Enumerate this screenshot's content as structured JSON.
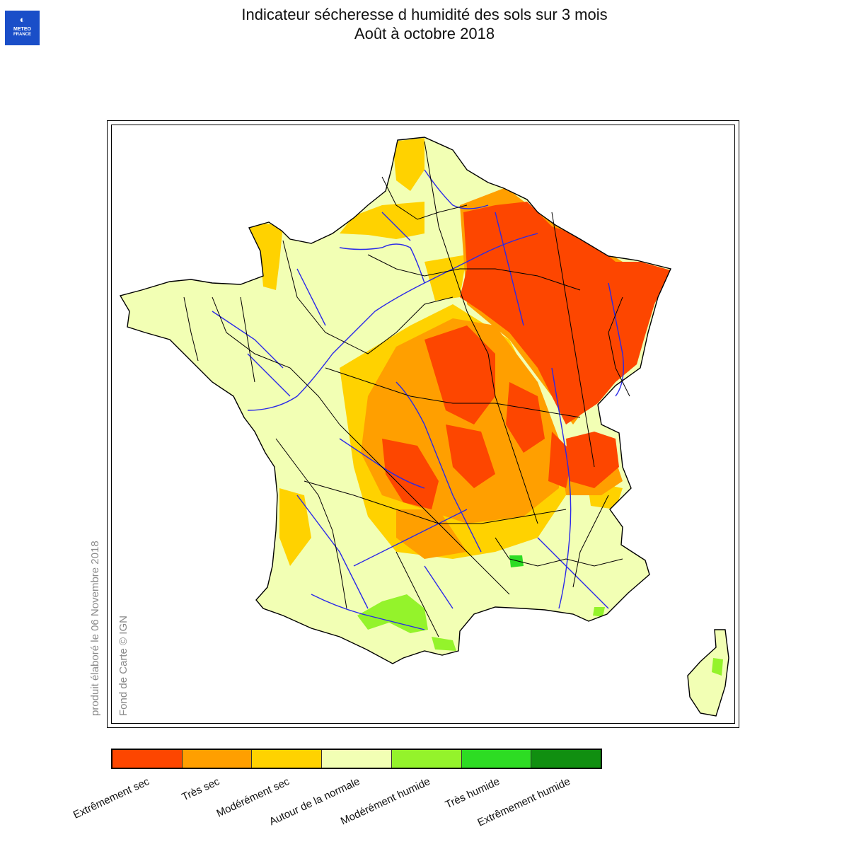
{
  "logo": {
    "glyph": "◐",
    "line1": "METEO",
    "line2": "FRANCE"
  },
  "header": {
    "title": "Indicateur sécheresse d humidité des sols sur 3 mois",
    "subtitle": "Août à octobre 2018"
  },
  "credits": {
    "produced": "produit élaboré le 06 Novembre 2018",
    "basemap": "Fond de Carte © IGN"
  },
  "legend": {
    "classes": [
      {
        "label": "Extrêmement sec",
        "color": "#fd4600"
      },
      {
        "label": "Très sec",
        "color": "#ff9f00"
      },
      {
        "label": "Modérément sec",
        "color": "#ffd200"
      },
      {
        "label": "Autour de la normale",
        "color": "#f2ffb4"
      },
      {
        "label": "Modérément humide",
        "color": "#94f32b"
      },
      {
        "label": "Très humide",
        "color": "#2ddc23"
      },
      {
        "label": "Extrêmement humide",
        "color": "#108f10"
      }
    ]
  },
  "map": {
    "river_color": "#2a2ae8",
    "boundary_color": "#000000"
  }
}
